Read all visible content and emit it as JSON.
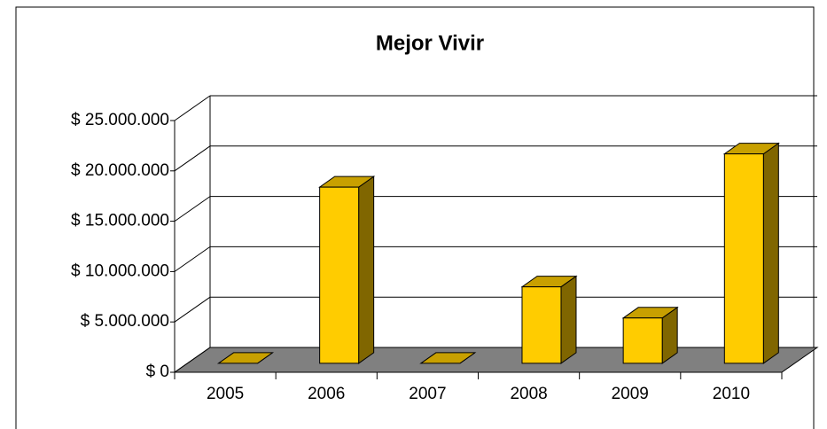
{
  "chart_data": {
    "type": "bar3d",
    "title": "Mejor Vivir",
    "categories": [
      "2005",
      "2006",
      "2007",
      "2008",
      "2009",
      "2010"
    ],
    "values": [
      0,
      17500000,
      0,
      7600000,
      4500000,
      20800000
    ],
    "color": "#ffcc00",
    "ylim": [
      0,
      25000000
    ],
    "yticks": [
      {
        "value": 0,
        "label": "$ 0"
      },
      {
        "value": 5000000,
        "label": "$ 5.000.000"
      },
      {
        "value": 10000000,
        "label": "$ 10.000.000"
      },
      {
        "value": 15000000,
        "label": "$ 15.000.000"
      },
      {
        "value": 20000000,
        "label": "$ 20.000.000"
      },
      {
        "value": 25000000,
        "label": "$ 25.000.000"
      }
    ],
    "grid": true
  }
}
